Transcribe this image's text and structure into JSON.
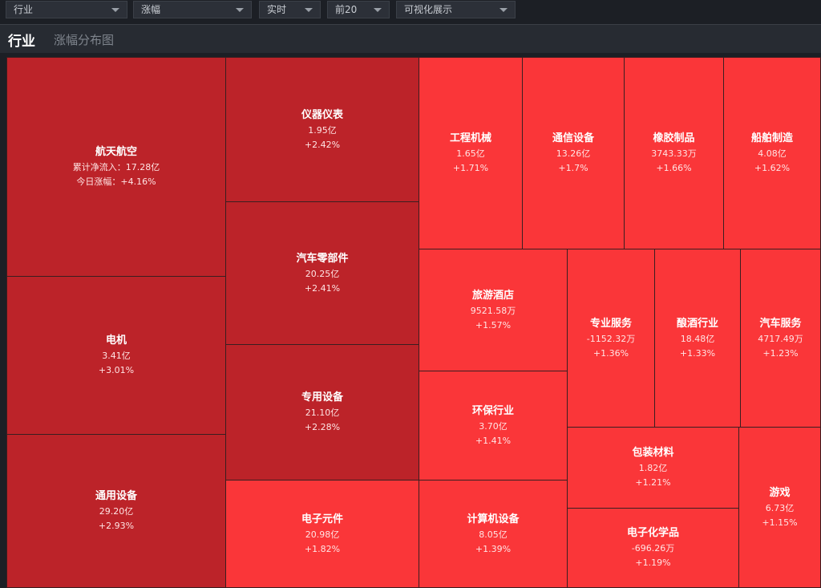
{
  "filters": {
    "category": "行业",
    "metric": "涨幅",
    "period": "实时",
    "top_n": "前20",
    "view": "可视化展示"
  },
  "header": {
    "title": "行业",
    "subtitle": "涨幅分布图"
  },
  "tiles": {
    "hangtian": {
      "name": "航天航空",
      "line1": "累计净流入：17.28亿",
      "line2": "今日涨幅：+4.16%"
    },
    "dianji": {
      "name": "电机",
      "line1": "3.41亿",
      "line2": "+3.01%"
    },
    "tongyong": {
      "name": "通用设备",
      "line1": "29.20亿",
      "line2": "+2.93%"
    },
    "yiqi": {
      "name": "仪器仪表",
      "line1": "1.95亿",
      "line2": "+2.42%"
    },
    "qiche_lbj": {
      "name": "汽车零部件",
      "line1": "20.25亿",
      "line2": "+2.41%"
    },
    "zhuanyong": {
      "name": "专用设备",
      "line1": "21.10亿",
      "line2": "+2.28%"
    },
    "dianzi_yj": {
      "name": "电子元件",
      "line1": "20.98亿",
      "line2": "+1.82%"
    },
    "gongcheng": {
      "name": "工程机械",
      "line1": "1.65亿",
      "line2": "+1.71%"
    },
    "tongxin": {
      "name": "通信设备",
      "line1": "13.26亿",
      "line2": "+1.7%"
    },
    "xiangjiao": {
      "name": "橡胶制品",
      "line1": "3743.33万",
      "line2": "+1.66%"
    },
    "chuanbo": {
      "name": "船舶制造",
      "line1": "4.08亿",
      "line2": "+1.62%"
    },
    "lvyou": {
      "name": "旅游酒店",
      "line1": "9521.58万",
      "line2": "+1.57%"
    },
    "huanbao": {
      "name": "环保行业",
      "line1": "3.70亿",
      "line2": "+1.41%"
    },
    "jisuanji": {
      "name": "计算机设备",
      "line1": "8.05亿",
      "line2": "+1.39%"
    },
    "zhuanye": {
      "name": "专业服务",
      "line1": "-1152.32万",
      "line2": "+1.36%"
    },
    "niangjiu": {
      "name": "酿酒行业",
      "line1": "18.48亿",
      "line2": "+1.33%"
    },
    "qiche_fw": {
      "name": "汽车服务",
      "line1": "4717.49万",
      "line2": "+1.23%"
    },
    "baozhuang": {
      "name": "包装材料",
      "line1": "1.82亿",
      "line2": "+1.21%"
    },
    "dianzi_hx": {
      "name": "电子化学品",
      "line1": "-696.26万",
      "line2": "+1.19%"
    },
    "youxi": {
      "name": "游戏",
      "line1": "6.73亿",
      "line2": "+1.15%"
    }
  },
  "colors": {
    "tile_dark": "#bc2329",
    "tile_light": "#fa3639",
    "background": "#1c1f25"
  }
}
